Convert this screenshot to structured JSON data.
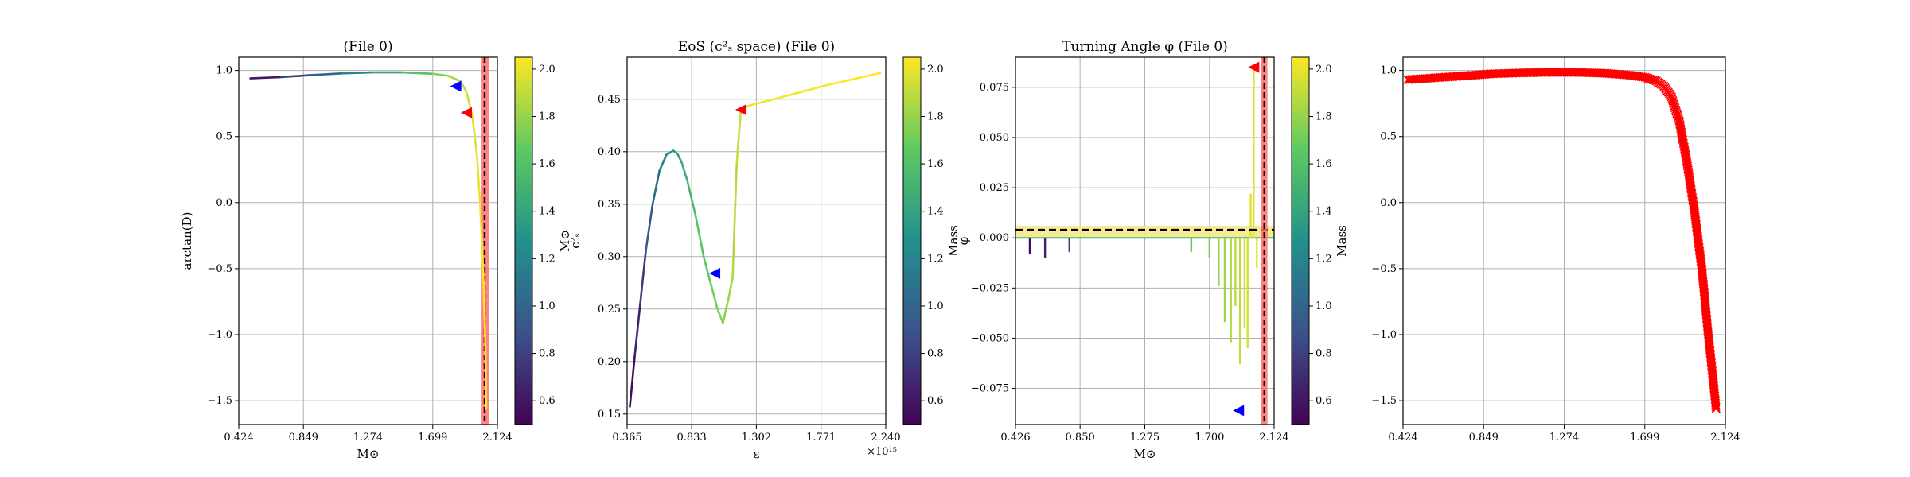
{
  "panels": [
    {
      "title": "(File 0)",
      "xlabel": "M⊙",
      "ylabel": "arctan(D)",
      "xlim": [
        0.424,
        2.124
      ],
      "ylim": [
        -1.68,
        1.1
      ],
      "xticks": [
        0.424,
        0.849,
        1.274,
        1.699,
        2.124
      ],
      "xtick_labels": [
        "0.424",
        "0.849",
        "1.274",
        "1.699",
        "2.124"
      ],
      "yticks": [
        -1.5,
        -1.0,
        -0.5,
        0.0,
        0.5,
        1.0
      ],
      "ytick_labels": [
        "−1.5",
        "−1.0",
        "−0.5",
        "0.0",
        "0.5",
        "1.0"
      ],
      "grid": true
    },
    {
      "title": "EoS (c²ₛ space) (File 0)",
      "xlabel": "ε",
      "ylabel": "c²ₛ",
      "offset_text": "×10¹⁵",
      "xlim": [
        0.365,
        2.24
      ],
      "ylim": [
        0.14,
        0.49
      ],
      "xticks": [
        0.365,
        0.833,
        1.302,
        1.771,
        2.24
      ],
      "xtick_labels": [
        "0.365",
        "0.833",
        "1.302",
        "1.771",
        "2.240"
      ],
      "yticks": [
        0.15,
        0.2,
        0.25,
        0.3,
        0.35,
        0.4,
        0.45
      ],
      "ytick_labels": [
        "0.15",
        "0.20",
        "0.25",
        "0.30",
        "0.35",
        "0.40",
        "0.45"
      ],
      "grid": true
    },
    {
      "title": "Turning Angle φ (File 0)",
      "xlabel": "M⊙",
      "ylabel": "φ",
      "xlim": [
        0.426,
        2.124
      ],
      "ylim": [
        -0.093,
        0.09
      ],
      "xticks": [
        0.426,
        0.85,
        1.275,
        1.7,
        2.124
      ],
      "xtick_labels": [
        "0.426",
        "0.850",
        "1.275",
        "1.700",
        "2.124"
      ],
      "yticks": [
        -0.075,
        -0.05,
        -0.025,
        0.0,
        0.025,
        0.05,
        0.075
      ],
      "ytick_labels": [
        "−0.075",
        "−0.050",
        "−0.025",
        "0.000",
        "0.025",
        "0.050",
        "0.075"
      ],
      "grid": true
    },
    {
      "title": "",
      "xlabel": "",
      "ylabel": "",
      "xlim": [
        0.424,
        2.124
      ],
      "ylim": [
        -1.68,
        1.1
      ],
      "xticks": [
        0.424,
        0.849,
        1.274,
        1.699,
        2.124
      ],
      "xtick_labels": [
        "0.424",
        "0.849",
        "1.274",
        "1.699",
        "2.124"
      ],
      "yticks": [
        -1.5,
        -1.0,
        -0.5,
        0.0,
        0.5,
        1.0
      ],
      "ytick_labels": [
        "−1.5",
        "−1.0",
        "−0.5",
        "0.0",
        "0.5",
        "1.0"
      ],
      "grid": true
    }
  ],
  "colorbars": [
    {
      "label": "M⊙",
      "range": [
        0.5,
        2.05
      ],
      "ticks": [
        0.6,
        0.8,
        1.0,
        1.2,
        1.4,
        1.6,
        1.8,
        2.0
      ],
      "tick_labels": [
        "0.6",
        "0.8",
        "1.0",
        "1.2",
        "1.4",
        "1.6",
        "1.8",
        "2.0"
      ]
    },
    {
      "label": "Mass",
      "range": [
        0.5,
        2.05
      ],
      "ticks": [
        0.6,
        0.8,
        1.0,
        1.2,
        1.4,
        1.6,
        1.8,
        2.0
      ],
      "tick_labels": [
        "0.6",
        "0.8",
        "1.0",
        "1.2",
        "1.4",
        "1.6",
        "1.8",
        "2.0"
      ]
    },
    {
      "label": "Mass",
      "range": [
        0.5,
        2.05
      ],
      "ticks": [
        0.6,
        0.8,
        1.0,
        1.2,
        1.4,
        1.6,
        1.8,
        2.0
      ],
      "tick_labels": [
        "0.6",
        "0.8",
        "1.0",
        "1.2",
        "1.4",
        "1.6",
        "1.8",
        "2.0"
      ]
    }
  ],
  "colormap": [
    "#440154",
    "#3b528b",
    "#21918c",
    "#5ec962",
    "#fde725"
  ],
  "colors": {
    "blue_marker": "#0000ff",
    "red_marker": "#ff0000",
    "band": "#ff6b6b",
    "yellow_band": "#f5e98a",
    "grid": "#b0b0b0"
  },
  "chart_data": [
    {
      "type": "line",
      "panel": 0,
      "color_by": "mass",
      "series": [
        {
          "x": [
            0.5,
            0.7,
            0.9,
            1.1,
            1.3,
            1.5,
            1.7,
            1.8,
            1.88,
            1.92,
            1.96,
            1.99,
            2.01,
            2.03,
            2.045,
            2.05
          ],
          "y": [
            0.94,
            0.95,
            0.965,
            0.978,
            0.985,
            0.985,
            0.975,
            0.96,
            0.92,
            0.84,
            0.65,
            0.35,
            0.0,
            -0.5,
            -1.1,
            -1.56
          ],
          "mass": [
            0.5,
            0.7,
            0.9,
            1.1,
            1.3,
            1.5,
            1.7,
            1.8,
            1.88,
            1.92,
            1.96,
            1.99,
            2.01,
            2.03,
            2.045,
            2.05
          ]
        }
      ],
      "markers": [
        {
          "x": 1.85,
          "y": 0.88,
          "color": "blue"
        },
        {
          "x": 1.92,
          "y": 0.68,
          "color": "red"
        }
      ],
      "vband": [
        2.02,
        2.07
      ],
      "vline": 2.04
    },
    {
      "type": "line",
      "panel": 1,
      "color_by": "mass",
      "series": [
        {
          "x": [
            0.385,
            0.42,
            0.46,
            0.5,
            0.55,
            0.6,
            0.65,
            0.7,
            0.73,
            0.76,
            0.8,
            0.86,
            0.92,
            0.98,
            1.02,
            1.06,
            1.1,
            1.13,
            1.16,
            1.19,
            1.25,
            1.4,
            1.6,
            1.8,
            2.0,
            2.2
          ],
          "y": [
            0.157,
            0.205,
            0.255,
            0.305,
            0.35,
            0.382,
            0.397,
            0.401,
            0.398,
            0.39,
            0.373,
            0.34,
            0.3,
            0.27,
            0.25,
            0.237,
            0.26,
            0.28,
            0.39,
            0.44,
            0.444,
            0.449,
            0.456,
            0.463,
            0.469,
            0.475
          ],
          "mass": [
            0.5,
            0.6,
            0.72,
            0.85,
            1.0,
            1.12,
            1.22,
            1.3,
            1.36,
            1.42,
            1.5,
            1.58,
            1.65,
            1.7,
            1.74,
            1.77,
            1.8,
            1.84,
            1.9,
            1.95,
            2.0,
            2.02,
            2.03,
            2.04,
            2.045,
            2.05
          ]
        }
      ],
      "markers": [
        {
          "x": 1.0,
          "y": 0.284,
          "color": "blue"
        },
        {
          "x": 1.19,
          "y": 0.44,
          "color": "red"
        }
      ]
    },
    {
      "type": "bar",
      "panel": 2,
      "color_by": "mass",
      "hline": 0.004,
      "hband": [
        0.0,
        0.006
      ],
      "vband": [
        2.04,
        2.08
      ],
      "vline": 2.06,
      "spikes": [
        {
          "x": 0.52,
          "y": -0.008,
          "mass": 0.55
        },
        {
          "x": 0.62,
          "y": -0.01,
          "mass": 0.65
        },
        {
          "x": 0.78,
          "y": -0.007,
          "mass": 0.8
        },
        {
          "x": 1.58,
          "y": -0.007,
          "mass": 1.65
        },
        {
          "x": 1.7,
          "y": -0.01,
          "mass": 1.72
        },
        {
          "x": 1.76,
          "y": -0.024,
          "mass": 1.78
        },
        {
          "x": 1.8,
          "y": -0.042,
          "mass": 1.82
        },
        {
          "x": 1.84,
          "y": -0.052,
          "mass": 1.86
        },
        {
          "x": 1.87,
          "y": -0.034,
          "mass": 1.88
        },
        {
          "x": 1.9,
          "y": -0.063,
          "mass": 1.9
        },
        {
          "x": 1.93,
          "y": -0.045,
          "mass": 1.93
        },
        {
          "x": 1.95,
          "y": -0.055,
          "mass": 1.95
        },
        {
          "x": 1.97,
          "y": 0.022,
          "mass": 1.97
        },
        {
          "x": 1.99,
          "y": 0.085,
          "mass": 1.99
        },
        {
          "x": 2.01,
          "y": -0.015,
          "mass": 2.01
        }
      ],
      "markers": [
        {
          "x": 1.89,
          "y": -0.086,
          "color": "blue"
        },
        {
          "x": 1.99,
          "y": 0.085,
          "color": "red"
        }
      ]
    },
    {
      "type": "scatter",
      "panel": 3,
      "marker": "x",
      "color": "red",
      "series": [
        {
          "x": [
            0.45,
            0.6,
            0.75,
            0.9,
            1.05,
            1.2,
            1.35,
            1.5,
            1.62,
            1.7,
            1.76,
            1.8,
            1.84,
            1.88,
            1.92,
            1.96,
            2.0,
            2.03,
            2.06,
            2.075
          ],
          "y": [
            0.93,
            0.945,
            0.96,
            0.975,
            0.982,
            0.986,
            0.985,
            0.978,
            0.965,
            0.948,
            0.92,
            0.88,
            0.8,
            0.62,
            0.32,
            -0.05,
            -0.5,
            -0.95,
            -1.35,
            -1.56
          ]
        }
      ]
    }
  ]
}
